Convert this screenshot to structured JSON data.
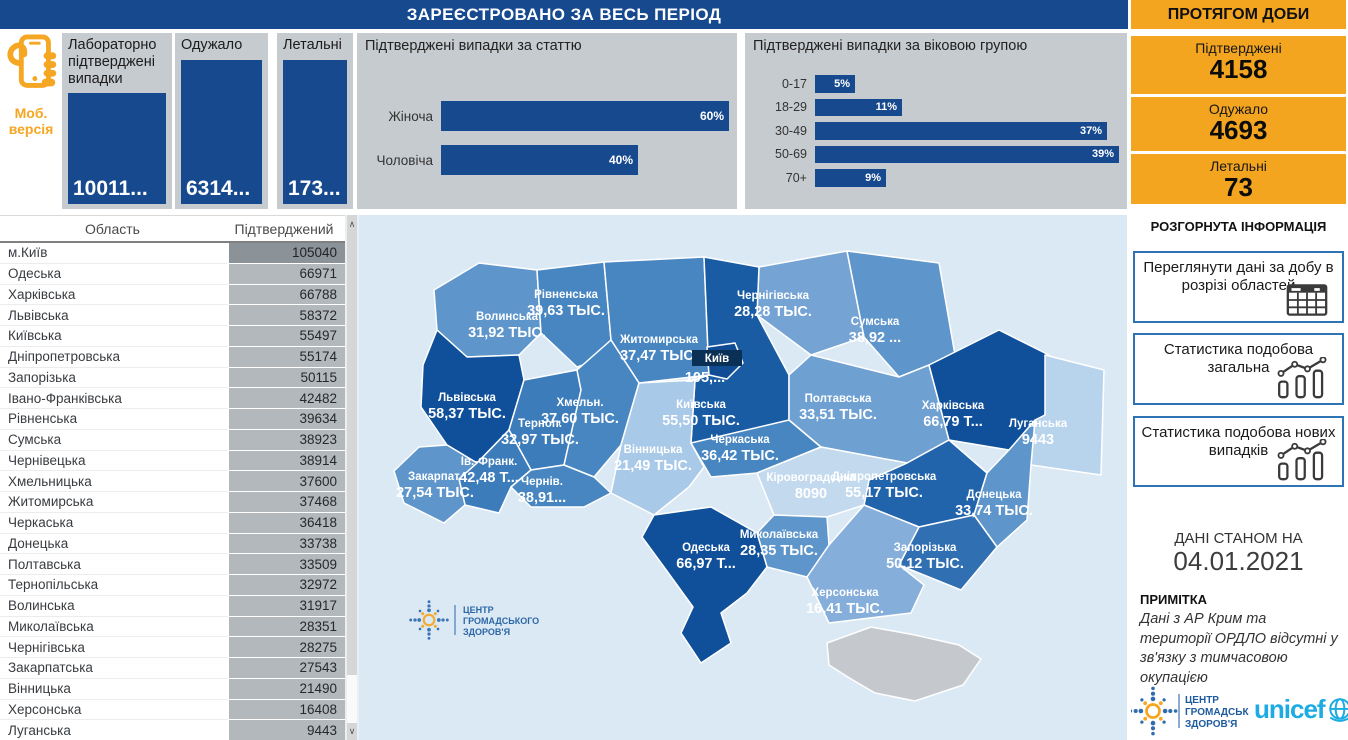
{
  "header": {
    "title": "ЗАРЕЄСТРОВАНО ЗА ВЕСЬ ПЕРІОД"
  },
  "daily": {
    "title": "ПРОТЯГОМ ДОБИ",
    "cards": [
      {
        "label": "Підтверджені",
        "value": "4158"
      },
      {
        "label": "Одужало",
        "value": "4693"
      },
      {
        "label": "Летальні",
        "value": "73"
      }
    ]
  },
  "mobile": {
    "label": "Моб. версія"
  },
  "totals": [
    {
      "label": "Лабораторно підтверджені випадки",
      "value": "10011..."
    },
    {
      "label": "Одужало",
      "value": "6314..."
    },
    {
      "label": "Летальні",
      "value": "173..."
    }
  ],
  "chart_data": [
    {
      "type": "bar",
      "orientation": "horizontal",
      "title": "Підтверджені випадки за статтю",
      "categories": [
        "Жіноча",
        "Чоловіча"
      ],
      "values": [
        60,
        40
      ],
      "unit": "%",
      "bar_color": "#17498F",
      "xlim": [
        0,
        65
      ]
    },
    {
      "type": "bar",
      "orientation": "horizontal",
      "title": "Підтверджені випадки за віковою групою",
      "categories": [
        "0-17",
        "18-29",
        "30-49",
        "50-69",
        "70+"
      ],
      "values": [
        5,
        11,
        37,
        39,
        9
      ],
      "unit": "%",
      "bar_color": "#17498F",
      "xlim": [
        0,
        42
      ]
    }
  ],
  "info": {
    "title": "РОЗГОРНУТА ІНФОРМАЦІЯ",
    "buttons": [
      {
        "label": "Переглянути дані за добу в розрізі областей",
        "icon": "table-icon"
      },
      {
        "label": "Статистика подобова загальна",
        "icon": "combo-chart-icon"
      },
      {
        "label": "Статистика подобова нових випадків",
        "icon": "combo-chart-icon"
      }
    ]
  },
  "status": {
    "label": "ДАНІ СТАНОМ НА",
    "date": "04.01.2021"
  },
  "note": {
    "title": "ПРИМІТКА",
    "text": "Дані з АР Крим та території ОРДЛО відсутні у зв'язку з тимчасовою окупацією"
  },
  "logos": {
    "phc_lines": [
      "ЦЕНТР",
      "ГРОМАДСЬКОГО",
      "ЗДОРОВ'Я"
    ],
    "unicef": "unicef"
  },
  "table": {
    "columns": [
      "Область",
      "Підтверджений"
    ],
    "highlight_row": "м.Київ",
    "rows": [
      [
        "м.Київ",
        "105040"
      ],
      [
        "Одеська",
        "66971"
      ],
      [
        "Харківська",
        "66788"
      ],
      [
        "Львівська",
        "58372"
      ],
      [
        "Київська",
        "55497"
      ],
      [
        "Дніпропетровська",
        "55174"
      ],
      [
        "Запорізька",
        "50115"
      ],
      [
        "Івано-Франківська",
        "42482"
      ],
      [
        "Рівненська",
        "39634"
      ],
      [
        "Сумська",
        "38923"
      ],
      [
        "Чернівецька",
        "38914"
      ],
      [
        "Хмельницька",
        "37600"
      ],
      [
        "Житомирська",
        "37468"
      ],
      [
        "Черкаська",
        "36418"
      ],
      [
        "Донецька",
        "33738"
      ],
      [
        "Полтавська",
        "33509"
      ],
      [
        "Тернопільська",
        "32972"
      ],
      [
        "Волинська",
        "31917"
      ],
      [
        "Миколаївська",
        "28351"
      ],
      [
        "Чернігівська",
        "28275"
      ],
      [
        "Закарпатська",
        "27543"
      ],
      [
        "Вінницька",
        "21490"
      ],
      [
        "Херсонська",
        "16408"
      ],
      [
        "Луганська",
        "9443"
      ]
    ]
  },
  "map": {
    "regions": [
      {
        "id": "volyn",
        "name": "Волинська",
        "value": "31,92 ТЫС.",
        "color": "#5E95CA"
      },
      {
        "id": "rivne",
        "name": "Рівненська",
        "value": "39,63 ТЫС.",
        "color": "#4886C2"
      },
      {
        "id": "zhytomyr",
        "name": "Житомирська",
        "value": "37,47 ТЫС.",
        "color": "#4886C2"
      },
      {
        "id": "chernihiv",
        "name": "Чернігівська",
        "value": "28,28 ТЫС.",
        "color": "#74A3D4"
      },
      {
        "id": "sumy",
        "name": "Сумська",
        "value": "38,92 ...",
        "color": "#5E95CA"
      },
      {
        "id": "kyiv-oblast",
        "name": "Київська",
        "value": "55,50 ТЫС.",
        "color": "#1A5CA4"
      },
      {
        "id": "kyiv-city",
        "name": "Київ",
        "value": "105,...",
        "color": "#0F4C94"
      },
      {
        "id": "lviv",
        "name": "Львівська",
        "value": "58,37 ТЫС.",
        "color": "#10509A"
      },
      {
        "id": "ternopil",
        "name": "Терноп.",
        "value": "32,97 ТЫС.",
        "color": "#3C7CBA"
      },
      {
        "id": "khmelnytskyi",
        "name": "Хмельн.",
        "value": "37,60 ТЫС.",
        "color": "#4886C2"
      },
      {
        "id": "ivano-frankivsk",
        "name": "Ів.-Франк.",
        "value": "42,48 Т...",
        "color": "#3C7CBA"
      },
      {
        "id": "zakarpattia",
        "name": "Закарпат.",
        "value": "27,54 ТЫС.",
        "color": "#5E95CA"
      },
      {
        "id": "chernivtsi",
        "name": "Чернів.",
        "value": "38,91...",
        "color": "#4886C2"
      },
      {
        "id": "vinnytsia",
        "name": "Вінницька",
        "value": "21,49 ТЫС.",
        "color": "#A9C9E8"
      },
      {
        "id": "cherkasy",
        "name": "Черкаська",
        "value": "36,42 ТЫС.",
        "color": "#4886C2"
      },
      {
        "id": "poltava",
        "name": "Полтавська",
        "value": "33,51 ТЫС.",
        "color": "#6FA0D2"
      },
      {
        "id": "kharkiv",
        "name": "Харківська",
        "value": "66,79 Т...",
        "color": "#10509A"
      },
      {
        "id": "luhansk",
        "name": "Луганська",
        "value": "9443",
        "color": "#B8D3EC"
      },
      {
        "id": "dnipro",
        "name": "Дніпропетровська",
        "value": "55,17 ТЫС.",
        "color": "#2264AC"
      },
      {
        "id": "donetsk",
        "name": "Донецька",
        "value": "33,74 ТЫС.",
        "color": "#5E95CA"
      },
      {
        "id": "zaporizhzhia",
        "name": "Запорізька",
        "value": "50,12 ТЫС.",
        "color": "#2F6FB2"
      },
      {
        "id": "kirovohrad",
        "name": "Кіровоградська",
        "value": "8090",
        "color": "#C3D9EE"
      },
      {
        "id": "mykolaiv",
        "name": "Миколаївська",
        "value": "28,35 ТЫС.",
        "color": "#5E95CA"
      },
      {
        "id": "odesa",
        "name": "Одеська",
        "value": "66,97 Т...",
        "color": "#10509A"
      },
      {
        "id": "kherson",
        "name": "Херсонська",
        "value": "16,41 ТЫС.",
        "color": "#85AEDA"
      }
    ]
  },
  "colors": {
    "header_blue": "#17498F",
    "bar_blue": "#17498F",
    "panel_gray": "#C6CBCF",
    "orange": "#F3A51F",
    "mobile_orange": "#F5A623",
    "map_bg": "#DBE9F5",
    "crimea_gray": "#C5C9CD",
    "value_cell_gray": "#B3B8BC",
    "value_cell_highlight": "#8C9398",
    "button_border": "#2E74B5",
    "unicef_blue": "#1CABE2",
    "phc_blue": "#1D5B9E"
  }
}
